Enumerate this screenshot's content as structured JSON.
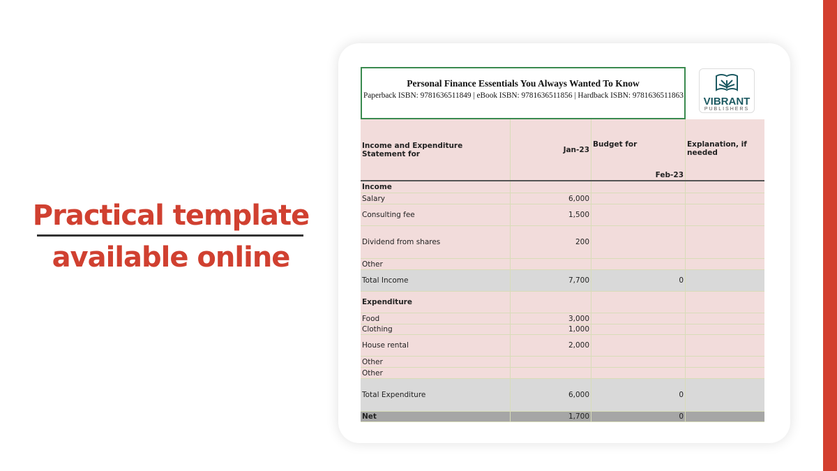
{
  "slogan": {
    "line1": "Practical template",
    "line2": "available online"
  },
  "colors": {
    "accent": "#d04030",
    "bar": "#d33f2f",
    "row_pink": "#f2dcdb",
    "total_gray": "#d9d9d9",
    "net_gray": "#a6a6a6"
  },
  "sheet": {
    "title": "Personal Finance Essentials You Always Wanted To Know",
    "isbn": "Paperback ISBN: 9781636511849 | eBook ISBN: 9781636511856 | Hardback ISBN: 9781636511863",
    "logo": {
      "name": "VIBRANT",
      "sub": "PUBLISHERS",
      "icon": "open-book-icon"
    },
    "headers": {
      "statement": "Income and Expenditure Statement for",
      "month": "Jan-23",
      "budget_label": "Budget for",
      "budget_month": "Feb-23",
      "explanation": "Explanation, if needed"
    },
    "rows": [
      {
        "label": "Income",
        "value": "",
        "budget": "",
        "style": "section",
        "h": 17
      },
      {
        "label": "Salary",
        "value": "6,000",
        "budget": "",
        "style": "pink",
        "h": 16
      },
      {
        "label": "Consulting fee",
        "value": "1,500",
        "budget": "",
        "style": "pink",
        "h": 31
      },
      {
        "label": "Dividend from shares",
        "value": "200",
        "budget": "",
        "style": "pink",
        "h": 47
      },
      {
        "label": "Other",
        "value": "",
        "budget": "",
        "style": "pink",
        "h": 16
      },
      {
        "label": "Total Income",
        "value": "7,700",
        "budget": "0",
        "style": "gray",
        "h": 31
      },
      {
        "label": "Expenditure",
        "value": "",
        "budget": "",
        "style": "section",
        "h": 31
      },
      {
        "label": "Food",
        "value": "3,000",
        "budget": "",
        "style": "pink",
        "h": 16
      },
      {
        "label": "Clothing",
        "value": "1,000",
        "budget": "",
        "style": "pink",
        "h": 15
      },
      {
        "label": "House rental",
        "value": "2,000",
        "budget": "",
        "style": "pink",
        "h": 31
      },
      {
        "label": "Other",
        "value": "",
        "budget": "",
        "style": "pink",
        "h": 16
      },
      {
        "label": "Other",
        "value": "",
        "budget": "",
        "style": "pink",
        "h": 16
      },
      {
        "label": "Total Expenditure",
        "value": "6,000",
        "budget": "0",
        "style": "gray",
        "h": 47
      },
      {
        "label": "Net",
        "value": "1,700",
        "budget": "0",
        "style": "net",
        "h": 15
      }
    ]
  }
}
